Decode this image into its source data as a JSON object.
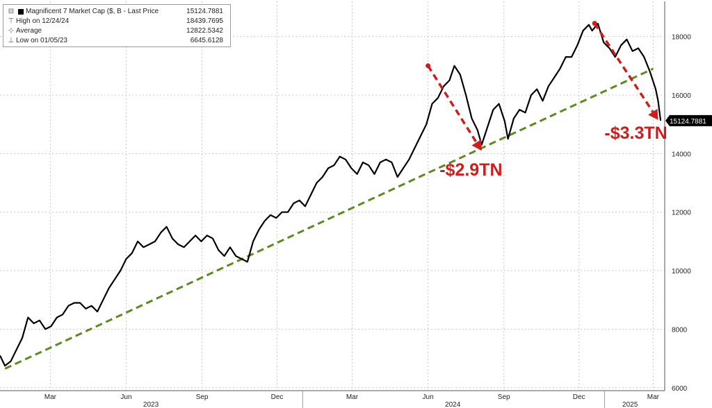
{
  "legend": {
    "series_label": "Magnificent 7 Market Cap ($, B - Last Price",
    "series_value": "15124.7881",
    "high_label": "High on 12/24/24",
    "high_value": "18439.7695",
    "average_label": "Average",
    "average_value": "12822.5342",
    "low_label": "Low on 01/05/23",
    "low_value": "6645.6128"
  },
  "last_price_tag": "15124.7881",
  "chart_data": {
    "type": "line",
    "title": "",
    "xlabel": "",
    "ylabel": "",
    "y_ticks": [
      6000,
      8000,
      10000,
      12000,
      14000,
      16000,
      18000
    ],
    "y_tick_labels": [
      "6000",
      "8000",
      "10000",
      "12000",
      "14000",
      "16000",
      "18000"
    ],
    "ylim": [
      5900,
      19200
    ],
    "xlim": [
      "2022-12-30",
      "2025-03-15"
    ],
    "month_ticks": [
      {
        "date": "2023-03-01",
        "label": "Mar"
      },
      {
        "date": "2023-06-01",
        "label": "Jun"
      },
      {
        "date": "2023-09-01",
        "label": "Sep"
      },
      {
        "date": "2023-12-01",
        "label": "Dec"
      },
      {
        "date": "2024-03-01",
        "label": "Mar"
      },
      {
        "date": "2024-06-01",
        "label": "Jun"
      },
      {
        "date": "2024-09-01",
        "label": "Sep"
      },
      {
        "date": "2024-12-01",
        "label": "Dec"
      },
      {
        "date": "2025-03-01",
        "label": "Mar"
      }
    ],
    "year_labels": [
      {
        "date": "2023-07-01",
        "label": "2023"
      },
      {
        "date": "2024-07-01",
        "label": "2024"
      },
      {
        "date": "2025-02-01",
        "label": "2025"
      }
    ],
    "year_dividers": [
      "2024-01-01",
      "2025-01-01"
    ],
    "series": [
      {
        "color": "#000000",
        "x": [
          "2022-12-30",
          "2023-01-05",
          "2023-01-12",
          "2023-01-19",
          "2023-01-26",
          "2023-02-02",
          "2023-02-09",
          "2023-02-16",
          "2023-02-23",
          "2023-03-02",
          "2023-03-09",
          "2023-03-16",
          "2023-03-23",
          "2023-03-30",
          "2023-04-06",
          "2023-04-13",
          "2023-04-20",
          "2023-04-27",
          "2023-05-04",
          "2023-05-11",
          "2023-05-18",
          "2023-05-25",
          "2023-06-01",
          "2023-06-08",
          "2023-06-15",
          "2023-06-22",
          "2023-06-29",
          "2023-07-06",
          "2023-07-13",
          "2023-07-20",
          "2023-07-27",
          "2023-08-03",
          "2023-08-10",
          "2023-08-17",
          "2023-08-24",
          "2023-08-31",
          "2023-09-07",
          "2023-09-14",
          "2023-09-21",
          "2023-09-28",
          "2023-10-05",
          "2023-10-12",
          "2023-10-19",
          "2023-10-26",
          "2023-11-02",
          "2023-11-09",
          "2023-11-16",
          "2023-11-23",
          "2023-11-30",
          "2023-12-07",
          "2023-12-14",
          "2023-12-21",
          "2023-12-28",
          "2024-01-04",
          "2024-01-11",
          "2024-01-18",
          "2024-01-25",
          "2024-02-01",
          "2024-02-08",
          "2024-02-15",
          "2024-02-22",
          "2024-02-29",
          "2024-03-07",
          "2024-03-14",
          "2024-03-21",
          "2024-03-28",
          "2024-04-04",
          "2024-04-11",
          "2024-04-18",
          "2024-04-25",
          "2024-05-02",
          "2024-05-09",
          "2024-05-16",
          "2024-05-23",
          "2024-05-30",
          "2024-06-06",
          "2024-06-13",
          "2024-06-20",
          "2024-06-27",
          "2024-07-03",
          "2024-07-10",
          "2024-07-17",
          "2024-07-24",
          "2024-07-31",
          "2024-08-05",
          "2024-08-12",
          "2024-08-19",
          "2024-08-26",
          "2024-09-02",
          "2024-09-06",
          "2024-09-13",
          "2024-09-20",
          "2024-09-27",
          "2024-10-04",
          "2024-10-11",
          "2024-10-18",
          "2024-10-25",
          "2024-11-01",
          "2024-11-08",
          "2024-11-15",
          "2024-11-22",
          "2024-11-29",
          "2024-12-06",
          "2024-12-13",
          "2024-12-17",
          "2024-12-24",
          "2024-12-31",
          "2025-01-07",
          "2025-01-14",
          "2025-01-21",
          "2025-01-28",
          "2025-02-04",
          "2025-02-11",
          "2025-02-18",
          "2025-02-25",
          "2025-03-04",
          "2025-03-07",
          "2025-03-10"
        ],
        "values": [
          7100,
          6750,
          6900,
          7300,
          7700,
          8400,
          8200,
          8300,
          8000,
          8100,
          8400,
          8500,
          8800,
          8900,
          8900,
          8700,
          8800,
          8600,
          9000,
          9400,
          9700,
          10000,
          10400,
          10600,
          11000,
          10800,
          10900,
          11000,
          11300,
          11500,
          11100,
          10900,
          10800,
          11000,
          11200,
          11000,
          11200,
          11100,
          10700,
          10500,
          10800,
          10500,
          10400,
          10300,
          11000,
          11400,
          11700,
          11900,
          11800,
          12000,
          12000,
          12300,
          12400,
          12200,
          12600,
          13000,
          13200,
          13500,
          13600,
          13900,
          13800,
          13500,
          13300,
          13700,
          13600,
          13300,
          13700,
          13800,
          13700,
          13200,
          13500,
          13800,
          14200,
          14600,
          15000,
          15700,
          15900,
          16300,
          16500,
          17000,
          16700,
          16000,
          15200,
          14800,
          14300,
          14900,
          15500,
          15700,
          15100,
          14500,
          15200,
          15500,
          15400,
          16000,
          16200,
          15800,
          16300,
          16600,
          16900,
          17300,
          17300,
          17700,
          18200,
          18400,
          18200,
          18439.7695,
          17800,
          17600,
          17300,
          17700,
          17900,
          17500,
          17600,
          17300,
          16800,
          16200,
          15800,
          15124.7881
        ]
      }
    ],
    "trendline": {
      "color": "#5b8a1f",
      "x": [
        "2023-01-05",
        "2025-03-01"
      ],
      "values": [
        6650,
        16900
      ]
    },
    "annotations": [
      {
        "label": "-$2.9TN",
        "color": "#d11c1c",
        "from": {
          "x": "2024-06-01",
          "y": 17000
        },
        "to": {
          "x": "2024-08-05",
          "y": 14100
        },
        "text_at": {
          "x": "2024-06-15",
          "y": 13250
        }
      },
      {
        "label": "-$3.3TN",
        "color": "#d11c1c",
        "from": {
          "x": "2024-12-20",
          "y": 18450
        },
        "to": {
          "x": "2025-03-07",
          "y": 15150
        },
        "text_at": {
          "x": "2025-01-01",
          "y": 14500
        }
      }
    ]
  }
}
